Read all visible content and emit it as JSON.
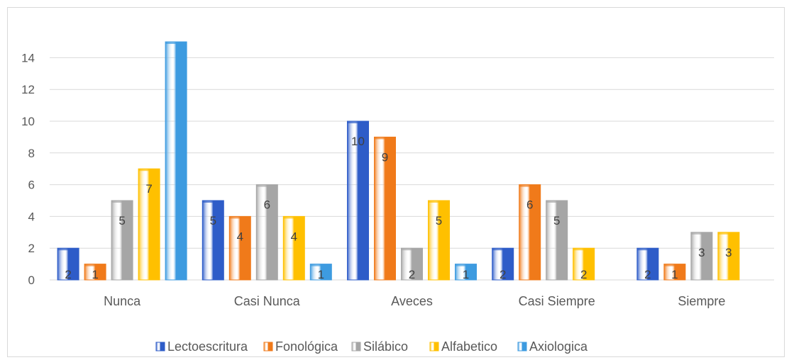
{
  "chart_data": {
    "type": "bar",
    "title": "",
    "xlabel": "",
    "ylabel": "",
    "ylim": [
      0,
      15
    ],
    "yticks": [
      0,
      2,
      4,
      6,
      8,
      10,
      12,
      14
    ],
    "grid": true,
    "legend_position": "bottom",
    "categories": [
      "Nunca",
      "Casi Nunca",
      "Aveces",
      "Casi Siempre",
      "Siempre"
    ],
    "series": [
      {
        "name": "Lectoescritura",
        "color": "#2e5cc8",
        "values": [
          2,
          5,
          10,
          2,
          2
        ],
        "labels": [
          "2",
          "5",
          "10",
          "2",
          "2"
        ]
      },
      {
        "name": "Fonológica",
        "color": "#f07a1a",
        "values": [
          1,
          4,
          9,
          6,
          1
        ],
        "labels": [
          "1",
          "4",
          "9",
          "6",
          "1"
        ]
      },
      {
        "name": "Silábico",
        "color": "#a6a6a6",
        "values": [
          5,
          6,
          2,
          5,
          3
        ],
        "labels": [
          "5",
          "6",
          "2",
          "5",
          "3"
        ]
      },
      {
        "name": "Alfabetico",
        "color": "#ffc000",
        "values": [
          7,
          4,
          5,
          2,
          3
        ],
        "labels": [
          "7",
          "4",
          "5",
          "2",
          "3"
        ]
      },
      {
        "name": "Axiologica",
        "color": "#3d9be0",
        "values": [
          15,
          1,
          1,
          null,
          null
        ],
        "labels": [
          "",
          "1",
          "1",
          "",
          ""
        ]
      }
    ]
  }
}
